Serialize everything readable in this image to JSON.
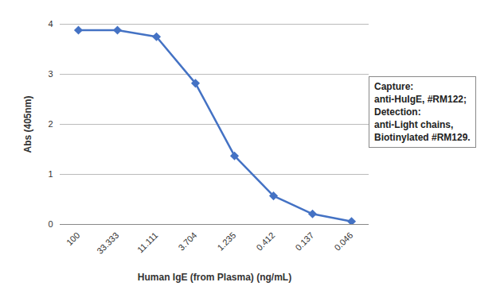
{
  "chart_data": {
    "type": "line",
    "x_label": "Human IgE (from Plasma) (ng/mL)",
    "y_label": "Abs (405nm)",
    "categories": [
      "100",
      "33.333",
      "11.111",
      "3.704",
      "1.235",
      "0.412",
      "0.137",
      "0.046"
    ],
    "values": [
      3.88,
      3.88,
      3.75,
      2.82,
      1.37,
      0.57,
      0.21,
      0.06
    ],
    "color": "#4472c4",
    "marker": "diamond",
    "ylim": [
      0,
      4
    ],
    "yticks": [
      0,
      1,
      2,
      3,
      4
    ],
    "grid": true,
    "annotation": [
      "Capture:",
      "anti-HuIgE, #RM122;",
      "Detection:",
      "anti-Light chains,",
      "Biotinylated #RM129."
    ]
  }
}
